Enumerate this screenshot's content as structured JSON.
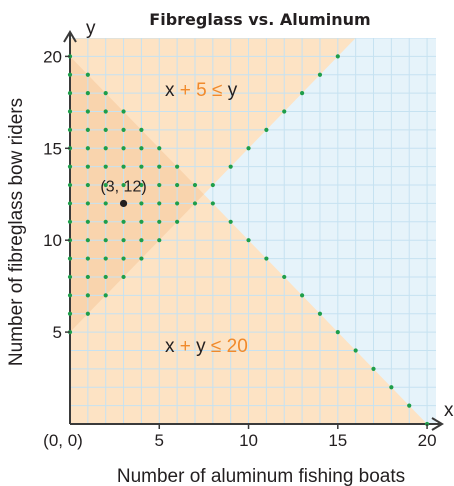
{
  "chart_data": {
    "type": "scatter",
    "title": "Fibreglass vs. Aluminum",
    "xlabel": "Number of aluminum fishing boats",
    "ylabel": "Number of fibreglass bow riders",
    "x_axis_letter": "x",
    "y_axis_letter": "y",
    "xlim": [
      0,
      20.5
    ],
    "ylim": [
      0,
      21
    ],
    "x_ticks": [
      5,
      10,
      15,
      20
    ],
    "y_ticks": [
      5,
      10,
      15,
      20
    ],
    "origin_label": "(0, 0)",
    "grid": true,
    "region_color": "#fde3c4",
    "background_color": "#e6f3fa",
    "grid_color": "#c6e2f1",
    "dot_color": "#1e9e4a",
    "boundary_lines": [
      {
        "label": {
          "x": "x",
          "op": "+ 5 ≤",
          "y": "y"
        },
        "slope": 1,
        "intercept": 5
      },
      {
        "label": {
          "x": "x",
          "op": "+",
          "y": "y",
          "rest": "≤ 20"
        },
        "slope": -1,
        "intercept": 20
      }
    ],
    "highlighted_point": {
      "x": 3,
      "y": 12,
      "label": "(3, 12)"
    },
    "solution_points_rule": "integer points with x ≥ 0, y ≥ 0, x + 5 ≤ y, x + y ≤ 20"
  }
}
